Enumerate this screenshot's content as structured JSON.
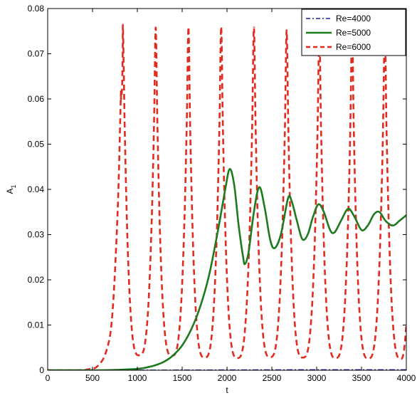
{
  "chart_data": {
    "type": "line",
    "xlabel": "t",
    "ylabel": "A",
    "ylabel_subscript": "1",
    "xlim": [
      0,
      4000
    ],
    "ylim": [
      0,
      0.08
    ],
    "x_ticks": [
      0,
      500,
      1000,
      1500,
      2000,
      2500,
      3000,
      3500,
      4000
    ],
    "y_ticks": [
      0,
      0.01,
      0.02,
      0.03,
      0.04,
      0.05,
      0.06,
      0.07,
      0.08
    ],
    "x_tick_labels": [
      "0",
      "500",
      "1000",
      "1500",
      "2000",
      "2500",
      "3000",
      "3500",
      "4000"
    ],
    "y_tick_labels": [
      "0",
      "0.01",
      "0.02",
      "0.03",
      "0.04",
      "0.05",
      "0.06",
      "0.07",
      "0.08"
    ],
    "grid": false,
    "legend_position": "top-right",
    "series": [
      {
        "name": "Re=4000",
        "color": "#1f1f9f",
        "style": "dash-dot",
        "points": [
          [
            0,
            0
          ],
          [
            1000,
            0
          ],
          [
            2000,
            5e-05
          ],
          [
            3000,
            0.0001
          ],
          [
            4000,
            0.0001
          ]
        ]
      },
      {
        "name": "Re=5000",
        "color": "#1e7a1e",
        "style": "solid",
        "points": [
          [
            0,
            0
          ],
          [
            600,
            0
          ],
          [
            800,
            0.0001
          ],
          [
            1000,
            0.0003
          ],
          [
            1100,
            0.0006
          ],
          [
            1200,
            0.0011
          ],
          [
            1300,
            0.0019
          ],
          [
            1400,
            0.0033
          ],
          [
            1500,
            0.0055
          ],
          [
            1600,
            0.009
          ],
          [
            1700,
            0.014
          ],
          [
            1800,
            0.021
          ],
          [
            1900,
            0.031
          ],
          [
            1980,
            0.04
          ],
          [
            2030,
            0.0445
          ],
          [
            2080,
            0.041
          ],
          [
            2130,
            0.032
          ],
          [
            2180,
            0.025
          ],
          [
            2200,
            0.0235
          ],
          [
            2240,
            0.026
          ],
          [
            2300,
            0.035
          ],
          [
            2360,
            0.0405
          ],
          [
            2420,
            0.036
          ],
          [
            2480,
            0.029
          ],
          [
            2530,
            0.027
          ],
          [
            2600,
            0.03
          ],
          [
            2680,
            0.038
          ],
          [
            2720,
            0.0375
          ],
          [
            2780,
            0.033
          ],
          [
            2840,
            0.029
          ],
          [
            2900,
            0.03
          ],
          [
            2960,
            0.034
          ],
          [
            3020,
            0.0367
          ],
          [
            3080,
            0.035
          ],
          [
            3150,
            0.031
          ],
          [
            3200,
            0.0305
          ],
          [
            3270,
            0.033
          ],
          [
            3350,
            0.0357
          ],
          [
            3420,
            0.034
          ],
          [
            3500,
            0.031
          ],
          [
            3570,
            0.032
          ],
          [
            3640,
            0.0345
          ],
          [
            3700,
            0.035
          ],
          [
            3770,
            0.033
          ],
          [
            3850,
            0.032
          ],
          [
            3920,
            0.033
          ],
          [
            4000,
            0.0343
          ]
        ]
      },
      {
        "name": "Re=6000",
        "color": "#e22a1f",
        "style": "dashed",
        "peaks": [
          840,
          1205,
          1570,
          1935,
          2300,
          2665,
          3030,
          3395,
          3760
        ],
        "peak_values": [
          0.0757,
          0.0758,
          0.0759,
          0.076,
          0.0758,
          0.0752,
          0.0755,
          0.0757,
          0.0758
        ],
        "troughs": [
          1020,
          1385,
          1750,
          2115,
          2480,
          2845,
          3210,
          3575,
          3940
        ],
        "trough_values": [
          0.0033,
          0.0032,
          0.0028,
          0.0027,
          0.0029,
          0.0028,
          0.0027,
          0.0026,
          0.0025
        ],
        "onset": [
          [
            0,
            0
          ],
          [
            350,
            0
          ],
          [
            450,
            0.0002
          ],
          [
            550,
            0.0008
          ],
          [
            650,
            0.004
          ],
          [
            720,
            0.012
          ],
          [
            780,
            0.035
          ],
          [
            815,
            0.06
          ]
        ],
        "tail": [
          [
            4000,
            0.0103
          ]
        ]
      }
    ]
  }
}
